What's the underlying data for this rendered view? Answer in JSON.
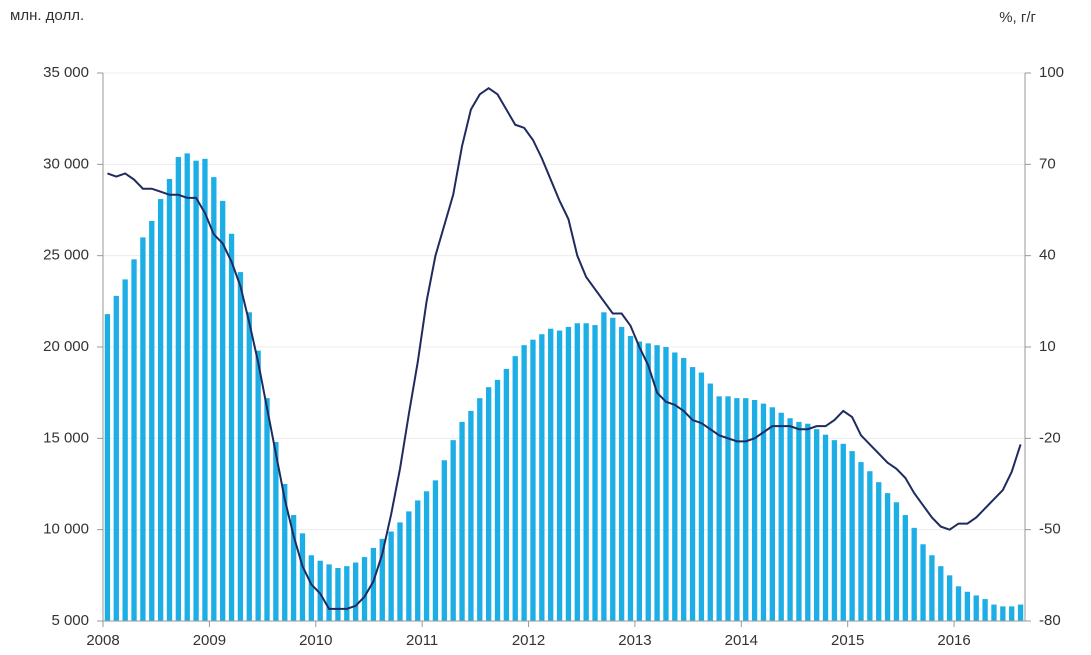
{
  "chart_data": {
    "type": "bar",
    "ylabel": "млн. долл.",
    "y2label": "%, г/г",
    "categories": [
      "2008",
      null,
      null,
      null,
      null,
      null,
      null,
      null,
      null,
      null,
      null,
      null,
      "2009",
      null,
      null,
      null,
      null,
      null,
      null,
      null,
      null,
      null,
      null,
      null,
      "2010",
      null,
      null,
      null,
      null,
      null,
      null,
      null,
      null,
      null,
      null,
      null,
      "2011",
      null,
      null,
      null,
      null,
      null,
      null,
      null,
      null,
      null,
      null,
      null,
      "2012",
      null,
      null,
      null,
      null,
      null,
      null,
      null,
      null,
      null,
      null,
      null,
      "2013",
      null,
      null,
      null,
      null,
      null,
      null,
      null,
      null,
      null,
      null,
      null,
      "2014",
      null,
      null,
      null,
      null,
      null,
      null,
      null,
      null,
      null,
      null,
      null,
      "2015",
      null,
      null,
      null,
      null,
      null,
      null,
      null,
      null,
      null,
      null,
      null,
      "2016",
      null,
      null,
      null,
      null,
      null,
      null,
      null
    ],
    "series": [
      {
        "type": "bar",
        "color": "#1eaee6",
        "values": [
          21800,
          22800,
          23700,
          24800,
          26000,
          26900,
          28100,
          29200,
          30400,
          30600,
          30200,
          30300,
          29300,
          28000,
          26200,
          24100,
          21900,
          19800,
          17200,
          14800,
          12500,
          10800,
          9800,
          8600,
          8300,
          8100,
          7900,
          8000,
          8200,
          8500,
          9000,
          9500,
          9900,
          10400,
          11000,
          11600,
          12100,
          12700,
          13800,
          14900,
          15900,
          16500,
          17200,
          17800,
          18200,
          18800,
          19500,
          20100,
          20400,
          20700,
          21000,
          20900,
          21100,
          21300,
          21300,
          21200,
          21900,
          21600,
          21100,
          20600,
          20300,
          20200,
          20100,
          20000,
          19700,
          19400,
          18900,
          18600,
          18000,
          17300,
          17300,
          17200,
          17200,
          17100,
          16900,
          16700,
          16400,
          16100,
          15900,
          15800,
          15500,
          15200,
          14900,
          14700,
          14300,
          13700,
          13200,
          12600,
          12000,
          11500,
          10800,
          10100,
          9200,
          8600,
          8000,
          7500,
          6900,
          6600,
          6400,
          6200,
          5900,
          5800,
          5800,
          5900
        ]
      },
      {
        "type": "line",
        "axis": "y2",
        "color": "#1f2b5e",
        "values": [
          67,
          66,
          67,
          65,
          62,
          62,
          61,
          60,
          60,
          59,
          59,
          54,
          47,
          44,
          38,
          30,
          18,
          5,
          -10,
          -25,
          -40,
          -52,
          -62,
          -68,
          -71,
          -76,
          -76,
          -76,
          -75,
          -72,
          -67,
          -58,
          -45,
          -30,
          -12,
          5,
          25,
          40,
          50,
          60,
          76,
          88,
          93,
          95,
          93,
          88,
          83,
          82,
          78,
          72,
          65,
          58,
          52,
          40,
          33,
          29,
          25,
          21,
          21,
          17,
          10,
          4,
          -5,
          -8,
          -9,
          -11,
          -14,
          -15,
          -17,
          -19,
          -20,
          -21,
          -21,
          -20,
          -18,
          -16,
          -16,
          -16,
          -17,
          -17,
          -16,
          -16,
          -14,
          -11,
          -13,
          -19,
          -22,
          -25,
          -28,
          -30,
          -33,
          -38,
          -42,
          -46,
          -49,
          -50,
          -48,
          -48,
          -46,
          -43,
          -40,
          -37,
          -31,
          -22
        ]
      }
    ],
    "ylim": [
      5000,
      35000
    ],
    "yticks": [
      {
        "value": 5000,
        "label": "5 000"
      },
      {
        "value": 10000,
        "label": "10 000"
      },
      {
        "value": 15000,
        "label": "15 000"
      },
      {
        "value": 20000,
        "label": "20 000"
      },
      {
        "value": 25000,
        "label": "25 000"
      },
      {
        "value": 30000,
        "label": "30 000"
      },
      {
        "value": 35000,
        "label": "35 000"
      }
    ],
    "y2lim": [
      -80,
      100
    ],
    "y2ticks": [
      -80,
      -50,
      -20,
      10,
      40,
      70,
      100
    ],
    "grid": true
  }
}
